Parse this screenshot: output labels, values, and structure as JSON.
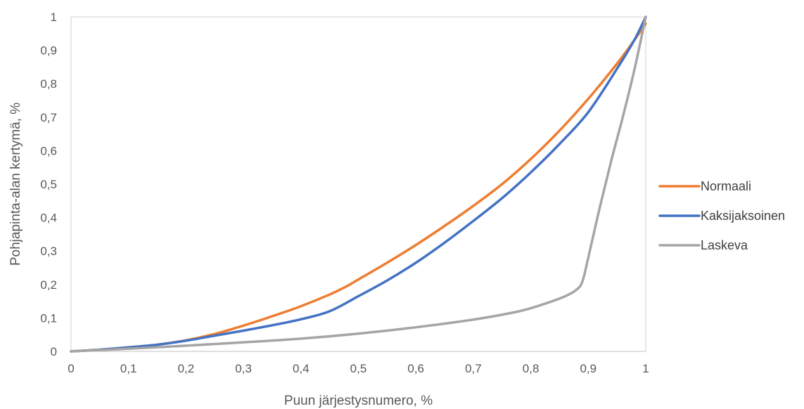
{
  "chart_data": {
    "type": "line",
    "title": "",
    "xlabel": "Puun järjestysnumero, %",
    "ylabel": "Pohjapinta-alan kertymä, %",
    "xlim": [
      0,
      1
    ],
    "ylim": [
      0,
      1
    ],
    "x_ticks": [
      0,
      0.1,
      0.2,
      0.3,
      0.4,
      0.5,
      0.6,
      0.7,
      0.8,
      0.9,
      1
    ],
    "x_tick_labels": [
      "0",
      "0,1",
      "0,2",
      "0,3",
      "0,4",
      "0,5",
      "0,6",
      "0,7",
      "0,8",
      "0,9",
      "1"
    ],
    "y_ticks": [
      0,
      0.1,
      0.2,
      0.3,
      0.4,
      0.5,
      0.6,
      0.7,
      0.8,
      0.9,
      1
    ],
    "y_tick_labels": [
      "0",
      "0,1",
      "0,2",
      "0,3",
      "0,4",
      "0,5",
      "0,6",
      "0,7",
      "0,8",
      "0,9",
      "1"
    ],
    "grid": false,
    "legend_position": "right",
    "series": [
      {
        "name": "Normaali",
        "color": "#ED7D31",
        "points": [
          [
            0,
            0
          ],
          [
            0.05,
            0.005
          ],
          [
            0.1,
            0.012
          ],
          [
            0.15,
            0.02
          ],
          [
            0.2,
            0.033
          ],
          [
            0.25,
            0.052
          ],
          [
            0.3,
            0.077
          ],
          [
            0.35,
            0.105
          ],
          [
            0.4,
            0.135
          ],
          [
            0.45,
            0.17
          ],
          [
            0.48,
            0.195
          ],
          [
            0.5,
            0.215
          ],
          [
            0.55,
            0.265
          ],
          [
            0.6,
            0.318
          ],
          [
            0.65,
            0.375
          ],
          [
            0.7,
            0.435
          ],
          [
            0.75,
            0.5
          ],
          [
            0.8,
            0.575
          ],
          [
            0.85,
            0.66
          ],
          [
            0.9,
            0.755
          ],
          [
            0.95,
            0.86
          ],
          [
            0.98,
            0.93
          ],
          [
            1,
            0.98
          ]
        ]
      },
      {
        "name": "Kaksijaksoinen",
        "color": "#4472C4",
        "points": [
          [
            0,
            0
          ],
          [
            0.05,
            0.005
          ],
          [
            0.1,
            0.012
          ],
          [
            0.15,
            0.02
          ],
          [
            0.2,
            0.032
          ],
          [
            0.25,
            0.047
          ],
          [
            0.3,
            0.062
          ],
          [
            0.35,
            0.078
          ],
          [
            0.4,
            0.096
          ],
          [
            0.45,
            0.12
          ],
          [
            0.5,
            0.165
          ],
          [
            0.55,
            0.212
          ],
          [
            0.6,
            0.265
          ],
          [
            0.65,
            0.325
          ],
          [
            0.7,
            0.39
          ],
          [
            0.75,
            0.458
          ],
          [
            0.8,
            0.535
          ],
          [
            0.85,
            0.62
          ],
          [
            0.9,
            0.715
          ],
          [
            0.95,
            0.845
          ],
          [
            0.98,
            0.93
          ],
          [
            1,
            1.0
          ]
        ]
      },
      {
        "name": "Laskeva",
        "color": "#A5A5A5",
        "points": [
          [
            0,
            0
          ],
          [
            0.1,
            0.008
          ],
          [
            0.2,
            0.017
          ],
          [
            0.3,
            0.027
          ],
          [
            0.4,
            0.038
          ],
          [
            0.5,
            0.053
          ],
          [
            0.6,
            0.072
          ],
          [
            0.7,
            0.095
          ],
          [
            0.78,
            0.12
          ],
          [
            0.82,
            0.14
          ],
          [
            0.86,
            0.165
          ],
          [
            0.88,
            0.185
          ],
          [
            0.89,
            0.21
          ],
          [
            0.9,
            0.28
          ],
          [
            0.92,
            0.43
          ],
          [
            0.94,
            0.57
          ],
          [
            0.96,
            0.7
          ],
          [
            0.98,
            0.84
          ],
          [
            1,
            1.0
          ]
        ]
      }
    ]
  }
}
